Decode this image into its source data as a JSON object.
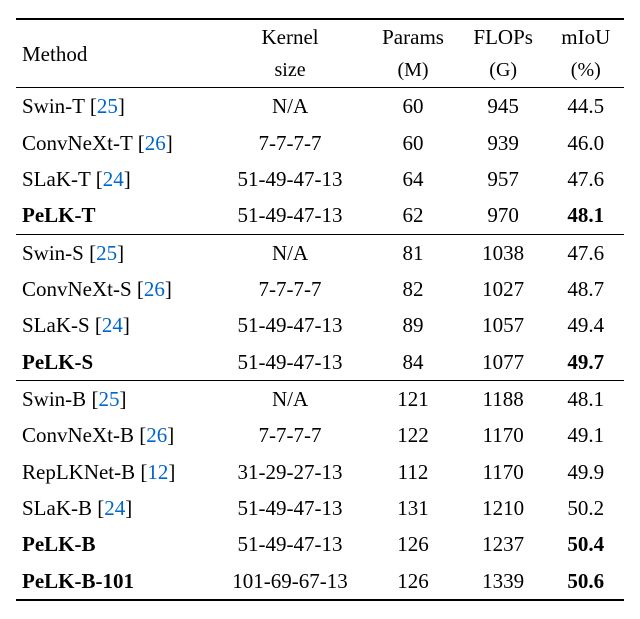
{
  "header": {
    "method": "Method",
    "kernel_line1": "Kernel",
    "kernel_line2": "size",
    "params_line1": "Params",
    "params_line2": "(M)",
    "flops_line1": "FLOPs",
    "flops_line2": "(G)",
    "miou_line1": "mIoU",
    "miou_line2": "(%)"
  },
  "colors": {
    "ref_color": "#0066cc",
    "text_color": "#000000",
    "background_color": "#ffffff",
    "rule_color": "#000000"
  },
  "groups": [
    {
      "rows": [
        {
          "method": "Swin-T",
          "ref": "[25]",
          "bold": false,
          "kernel": "N/A",
          "params": "60",
          "flops": "945",
          "miou": "44.5",
          "miou_bold": false
        },
        {
          "method": "ConvNeXt-T",
          "ref": "[26]",
          "bold": false,
          "kernel": "7-7-7-7",
          "params": "60",
          "flops": "939",
          "miou": "46.0",
          "miou_bold": false
        },
        {
          "method": "SLaK-T",
          "ref": "[24]",
          "bold": false,
          "kernel": "51-49-47-13",
          "params": "64",
          "flops": "957",
          "miou": "47.6",
          "miou_bold": false
        },
        {
          "method": "PeLK-T",
          "ref": "",
          "bold": true,
          "kernel": "51-49-47-13",
          "params": "62",
          "flops": "970",
          "miou": "48.1",
          "miou_bold": true
        }
      ]
    },
    {
      "rows": [
        {
          "method": "Swin-S",
          "ref": "[25]",
          "bold": false,
          "kernel": "N/A",
          "params": "81",
          "flops": "1038",
          "miou": "47.6",
          "miou_bold": false
        },
        {
          "method": "ConvNeXt-S",
          "ref": "[26]",
          "bold": false,
          "kernel": "7-7-7-7",
          "params": "82",
          "flops": "1027",
          "miou": "48.7",
          "miou_bold": false
        },
        {
          "method": "SLaK-S",
          "ref": "[24]",
          "bold": false,
          "kernel": "51-49-47-13",
          "params": "89",
          "flops": "1057",
          "miou": "49.4",
          "miou_bold": false
        },
        {
          "method": "PeLK-S",
          "ref": "",
          "bold": true,
          "kernel": "51-49-47-13",
          "params": "84",
          "flops": "1077",
          "miou": "49.7",
          "miou_bold": true
        }
      ]
    },
    {
      "rows": [
        {
          "method": "Swin-B",
          "ref": "[25]",
          "bold": false,
          "kernel": "N/A",
          "params": "121",
          "flops": "1188",
          "miou": "48.1",
          "miou_bold": false
        },
        {
          "method": "ConvNeXt-B",
          "ref": "[26]",
          "bold": false,
          "kernel": "7-7-7-7",
          "params": "122",
          "flops": "1170",
          "miou": "49.1",
          "miou_bold": false
        },
        {
          "method": "RepLKNet-B",
          "ref": "[12]",
          "bold": false,
          "kernel": "31-29-27-13",
          "params": "112",
          "flops": "1170",
          "miou": "49.9",
          "miou_bold": false
        },
        {
          "method": "SLaK-B",
          "ref": "[24]",
          "bold": false,
          "kernel": "51-49-47-13",
          "params": "131",
          "flops": "1210",
          "miou": "50.2",
          "miou_bold": false
        },
        {
          "method": "PeLK-B",
          "ref": "",
          "bold": true,
          "kernel": "51-49-47-13",
          "params": "126",
          "flops": "1237",
          "miou": "50.4",
          "miou_bold": true
        },
        {
          "method": "PeLK-B-101",
          "ref": "",
          "bold": true,
          "kernel": "101-69-67-13",
          "params": "126",
          "flops": "1339",
          "miou": "50.6",
          "miou_bold": true
        }
      ]
    }
  ]
}
